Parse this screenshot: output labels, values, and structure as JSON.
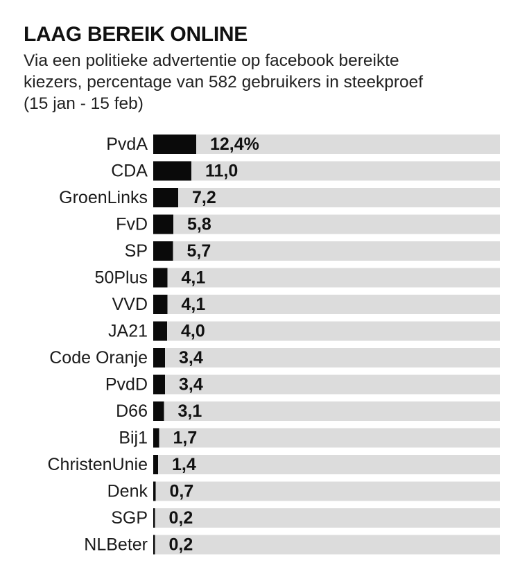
{
  "title": "LAAG BEREIK ONLINE",
  "subtitle_lines": [
    "Via een politieke advertentie op facebook bereikte",
    "kiezers, percentage van 582 gebruikers in steekproef",
    "(15 jan - 15 feb)"
  ],
  "colors": {
    "bar": "#0a0a0a",
    "track": "#dcdcdc"
  },
  "chart_data": {
    "type": "bar",
    "orientation": "horizontal",
    "categories": [
      "PvdA",
      "CDA",
      "GroenLinks",
      "FvD",
      "SP",
      "50Plus",
      "VVD",
      "JA21",
      "Code Oranje",
      "PvdD",
      "D66",
      "Bij1",
      "ChristenUnie",
      "Denk",
      "SGP",
      "NLBeter"
    ],
    "values": [
      12.4,
      11.0,
      7.2,
      5.8,
      5.7,
      4.1,
      4.1,
      4.0,
      3.4,
      3.4,
      3.1,
      1.7,
      1.4,
      0.7,
      0.2,
      0.2
    ],
    "value_labels": [
      "12,4%",
      "11,0",
      "7,2",
      "5,8",
      "5,7",
      "4,1",
      "4,1",
      "4,0",
      "3,4",
      "3,4",
      "3,1",
      "1,7",
      "1,4",
      "0,7",
      "0,2",
      "0,2"
    ],
    "xlim": [
      0,
      100
    ],
    "grid": false,
    "legend": "none"
  }
}
